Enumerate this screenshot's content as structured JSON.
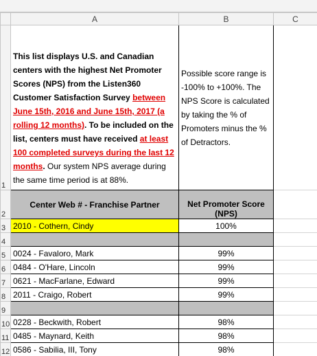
{
  "column_headers": [
    "A",
    "B",
    "C"
  ],
  "row_numbers": [
    "1",
    "2",
    "3",
    "4",
    "5",
    "6",
    "7",
    "8",
    "9",
    "10",
    "11",
    "12"
  ],
  "description": {
    "segments": [
      "This list displays U.S. and Canadian centers with the highest Net Promoter Scores (NPS) from the Listen360 Customer Satisfaction Survey ",
      "between June 15th, 2016 and June 15th, 2017 (a rolling 12 months)",
      ".  To be included on the list, centers must have received ",
      "at least 100 completed surveys during the last 12 months",
      ".",
      " Our system NPS average during the same time period is at 88%."
    ]
  },
  "note": "Possible score range is -100% to +100%. The NPS Score is calculated by taking the % of Promoters minus the % of Detractors.",
  "table": {
    "header": [
      "Center Web # - Franchise Partner",
      "Net Promoter Score (NPS)"
    ],
    "rows": [
      [
        "2010 - Cothern, Cindy",
        "100%"
      ],
      [
        "0024 - Favaloro, Mark",
        "99%"
      ],
      [
        "0484 - O'Hare, Lincoln",
        "99%"
      ],
      [
        "0621 - MacFarlane, Edward",
        "99%"
      ],
      [
        "2011 - Craigo, Robert",
        "99%"
      ],
      [
        "0228 - Beckwith, Robert",
        "98%"
      ],
      [
        "0485 - Maynard, Keith",
        "98%"
      ],
      [
        "0586 - Sabilia, III, Tony",
        "98%"
      ]
    ]
  }
}
